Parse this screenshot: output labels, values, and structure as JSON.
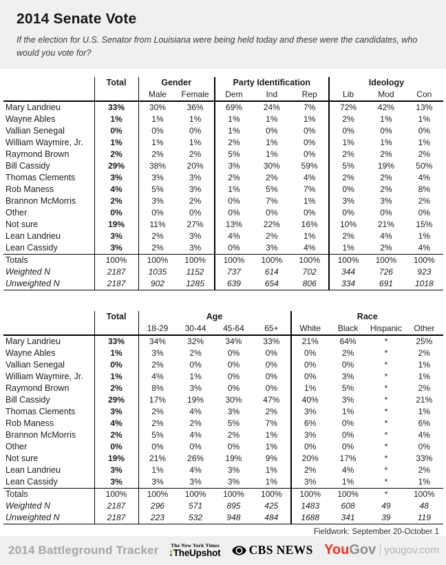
{
  "header": {
    "title": "2014 Senate Vote",
    "subtitle": "If the election for U.S. Senator from Louisiana were being held today and these were the candidates, who would you vote for?"
  },
  "tables": [
    {
      "total_label": "Total",
      "groups": [
        {
          "label": "Gender",
          "columns": [
            "Male",
            "Female"
          ]
        },
        {
          "label": "Party Identification",
          "columns": [
            "Dem",
            "Ind",
            "Rep"
          ]
        },
        {
          "label": "Ideology",
          "columns": [
            "Lib",
            "Mod",
            "Con"
          ]
        }
      ],
      "rows": [
        {
          "label": "Mary Landrieu",
          "cells": [
            "33%",
            "30%",
            "36%",
            "69%",
            "24%",
            "7%",
            "72%",
            "42%",
            "13%"
          ]
        },
        {
          "label": "Wayne Ables",
          "cells": [
            "1%",
            "1%",
            "1%",
            "1%",
            "1%",
            "1%",
            "2%",
            "1%",
            "1%"
          ]
        },
        {
          "label": "Vallian Senegal",
          "cells": [
            "0%",
            "0%",
            "0%",
            "1%",
            "0%",
            "0%",
            "0%",
            "0%",
            "0%"
          ]
        },
        {
          "label": "William Waymire, Jr.",
          "cells": [
            "1%",
            "1%",
            "1%",
            "2%",
            "1%",
            "0%",
            "1%",
            "1%",
            "1%"
          ]
        },
        {
          "label": "Raymond Brown",
          "cells": [
            "2%",
            "2%",
            "2%",
            "5%",
            "1%",
            "0%",
            "2%",
            "2%",
            "2%"
          ]
        },
        {
          "label": "Bill Cassidy",
          "cells": [
            "29%",
            "38%",
            "20%",
            "3%",
            "30%",
            "59%",
            "5%",
            "19%",
            "50%"
          ]
        },
        {
          "label": "Thomas Clements",
          "cells": [
            "3%",
            "3%",
            "3%",
            "2%",
            "2%",
            "4%",
            "2%",
            "2%",
            "4%"
          ]
        },
        {
          "label": "Rob Maness",
          "cells": [
            "4%",
            "5%",
            "3%",
            "1%",
            "5%",
            "7%",
            "0%",
            "2%",
            "8%"
          ]
        },
        {
          "label": "Brannon McMorris",
          "cells": [
            "2%",
            "3%",
            "2%",
            "0%",
            "7%",
            "1%",
            "3%",
            "3%",
            "2%"
          ]
        },
        {
          "label": "Other",
          "cells": [
            "0%",
            "0%",
            "0%",
            "0%",
            "0%",
            "0%",
            "0%",
            "0%",
            "0%"
          ]
        },
        {
          "label": "Not sure",
          "cells": [
            "19%",
            "11%",
            "27%",
            "13%",
            "22%",
            "16%",
            "10%",
            "21%",
            "15%"
          ]
        },
        {
          "label": "Lean Landrieu",
          "cells": [
            "3%",
            "2%",
            "3%",
            "4%",
            "2%",
            "1%",
            "2%",
            "4%",
            "1%"
          ]
        },
        {
          "label": "Lean Cassidy",
          "cells": [
            "3%",
            "2%",
            "3%",
            "0%",
            "3%",
            "4%",
            "1%",
            "2%",
            "4%"
          ]
        }
      ],
      "footer_rows": [
        {
          "label": "Totals",
          "cells": [
            "100%",
            "100%",
            "100%",
            "100%",
            "100%",
            "100%",
            "100%",
            "100%",
            "100%"
          ]
        },
        {
          "label": "Weighted N",
          "cells": [
            "2187",
            "1035",
            "1152",
            "737",
            "614",
            "702",
            "344",
            "726",
            "923"
          ]
        },
        {
          "label": "Unweighted N",
          "cells": [
            "2187",
            "902",
            "1285",
            "639",
            "654",
            "806",
            "334",
            "691",
            "1018"
          ]
        }
      ]
    },
    {
      "total_label": "Total",
      "groups": [
        {
          "label": "Age",
          "columns": [
            "18-29",
            "30-44",
            "45-64",
            "65+"
          ]
        },
        {
          "label": "Race",
          "columns": [
            "White",
            "Black",
            "Hispanic",
            "Other"
          ]
        }
      ],
      "rows": [
        {
          "label": "Mary Landrieu",
          "cells": [
            "33%",
            "34%",
            "32%",
            "34%",
            "33%",
            "21%",
            "64%",
            "*",
            "25%"
          ]
        },
        {
          "label": "Wayne Ables",
          "cells": [
            "1%",
            "3%",
            "2%",
            "0%",
            "0%",
            "0%",
            "2%",
            "*",
            "2%"
          ]
        },
        {
          "label": "Vallian Senegal",
          "cells": [
            "0%",
            "2%",
            "0%",
            "0%",
            "0%",
            "0%",
            "0%",
            "*",
            "1%"
          ]
        },
        {
          "label": "William Waymire, Jr.",
          "cells": [
            "1%",
            "4%",
            "1%",
            "0%",
            "0%",
            "0%",
            "3%",
            "*",
            "1%"
          ]
        },
        {
          "label": "Raymond Brown",
          "cells": [
            "2%",
            "8%",
            "3%",
            "0%",
            "0%",
            "1%",
            "5%",
            "*",
            "2%"
          ]
        },
        {
          "label": "Bill Cassidy",
          "cells": [
            "29%",
            "17%",
            "19%",
            "30%",
            "47%",
            "40%",
            "3%",
            "*",
            "21%"
          ]
        },
        {
          "label": "Thomas Clements",
          "cells": [
            "3%",
            "2%",
            "4%",
            "3%",
            "2%",
            "3%",
            "1%",
            "*",
            "1%"
          ]
        },
        {
          "label": "Rob Maness",
          "cells": [
            "4%",
            "2%",
            "2%",
            "5%",
            "7%",
            "6%",
            "0%",
            "*",
            "6%"
          ]
        },
        {
          "label": "Brannon McMorris",
          "cells": [
            "2%",
            "5%",
            "4%",
            "2%",
            "1%",
            "3%",
            "0%",
            "*",
            "4%"
          ]
        },
        {
          "label": "Other",
          "cells": [
            "0%",
            "0%",
            "0%",
            "0%",
            "1%",
            "0%",
            "0%",
            "*",
            "0%"
          ]
        },
        {
          "label": "Not sure",
          "cells": [
            "19%",
            "21%",
            "26%",
            "19%",
            "9%",
            "20%",
            "17%",
            "*",
            "33%"
          ]
        },
        {
          "label": "Lean Landrieu",
          "cells": [
            "3%",
            "1%",
            "4%",
            "3%",
            "1%",
            "2%",
            "4%",
            "*",
            "2%"
          ]
        },
        {
          "label": "Lean Cassidy",
          "cells": [
            "3%",
            "3%",
            "3%",
            "3%",
            "1%",
            "3%",
            "1%",
            "*",
            "1%"
          ]
        }
      ],
      "footer_rows": [
        {
          "label": "Totals",
          "cells": [
            "100%",
            "100%",
            "100%",
            "100%",
            "100%",
            "100%",
            "100%",
            "*",
            "100%"
          ]
        },
        {
          "label": "Weighted N",
          "cells": [
            "2187",
            "296",
            "571",
            "895",
            "425",
            "1483",
            "608",
            "49",
            "48"
          ]
        },
        {
          "label": "Unweighted N",
          "cells": [
            "2187",
            "223",
            "532",
            "948",
            "484",
            "1688",
            "341",
            "39",
            "119"
          ]
        }
      ]
    }
  ],
  "fieldwork": "Fieldwork: September 20-October 1",
  "footer": {
    "tracker": "2014 Battleground Tracker",
    "nyt_top": "The New York Times",
    "nyt_bottom": "TheUpshot",
    "cbs": "CBS NEWS",
    "yougov_you": "You",
    "yougov_gov": "Gov",
    "yougov_domain": "yougov.com"
  },
  "colors": {
    "yougov_red": "#ee3123",
    "upshot_green": "#94c120",
    "upshot_green_dark": "#647f1c",
    "band_gray": "#f0f0f0",
    "tracker_gray": "#a5a5a5"
  }
}
